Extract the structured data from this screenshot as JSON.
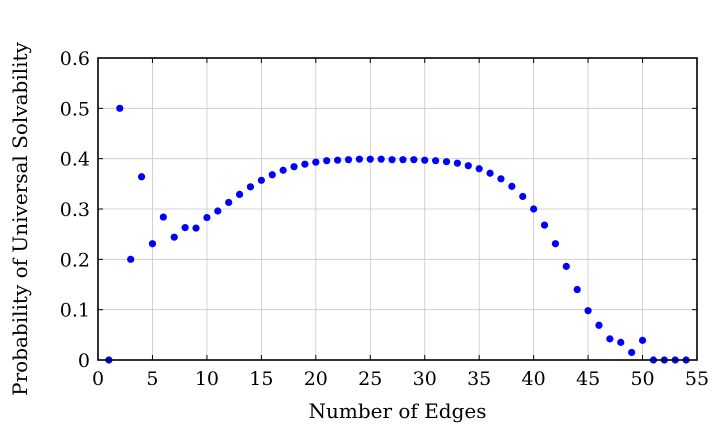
{
  "chart_data": {
    "type": "scatter",
    "title": "",
    "xlabel": "Number of Edges",
    "ylabel": "Probability of Universal Solvability",
    "xlim": [
      0,
      55
    ],
    "ylim": [
      0,
      0.6
    ],
    "xticks": [
      0,
      5,
      10,
      15,
      20,
      25,
      30,
      35,
      40,
      45,
      50,
      55
    ],
    "yticks": [
      0,
      0.1,
      0.2,
      0.3,
      0.4,
      0.5,
      0.6
    ],
    "ytick_labels": [
      "0",
      "0.1",
      "0.2",
      "0.3",
      "0.4",
      "0.5",
      "0.6"
    ],
    "grid": true,
    "marker_color": "#0000ff",
    "series": [
      {
        "x": [
          1,
          2,
          3,
          4,
          5,
          6,
          7,
          8,
          9,
          10,
          11,
          12,
          13,
          14,
          15,
          16,
          17,
          18,
          19,
          20,
          21,
          22,
          23,
          24,
          25,
          26,
          27,
          28,
          29,
          30,
          31,
          32,
          33,
          34,
          35,
          36,
          37,
          38,
          39,
          40,
          41,
          42,
          43,
          44,
          45,
          46,
          47,
          48,
          49,
          50,
          51,
          52,
          53,
          54
        ],
        "y": [
          0,
          0.5,
          0.2,
          0.364,
          0.231,
          0.284,
          0.244,
          0.263,
          0.262,
          0.283,
          0.296,
          0.313,
          0.329,
          0.344,
          0.357,
          0.368,
          0.377,
          0.384,
          0.389,
          0.393,
          0.396,
          0.397,
          0.398,
          0.399,
          0.399,
          0.399,
          0.398,
          0.398,
          0.398,
          0.397,
          0.396,
          0.394,
          0.391,
          0.386,
          0.38,
          0.371,
          0.36,
          0.345,
          0.325,
          0.3,
          0.268,
          0.231,
          0.186,
          0.14,
          0.098,
          0.069,
          0.042,
          0.035,
          0.015,
          0.039,
          0,
          0,
          0,
          0
        ]
      }
    ]
  }
}
